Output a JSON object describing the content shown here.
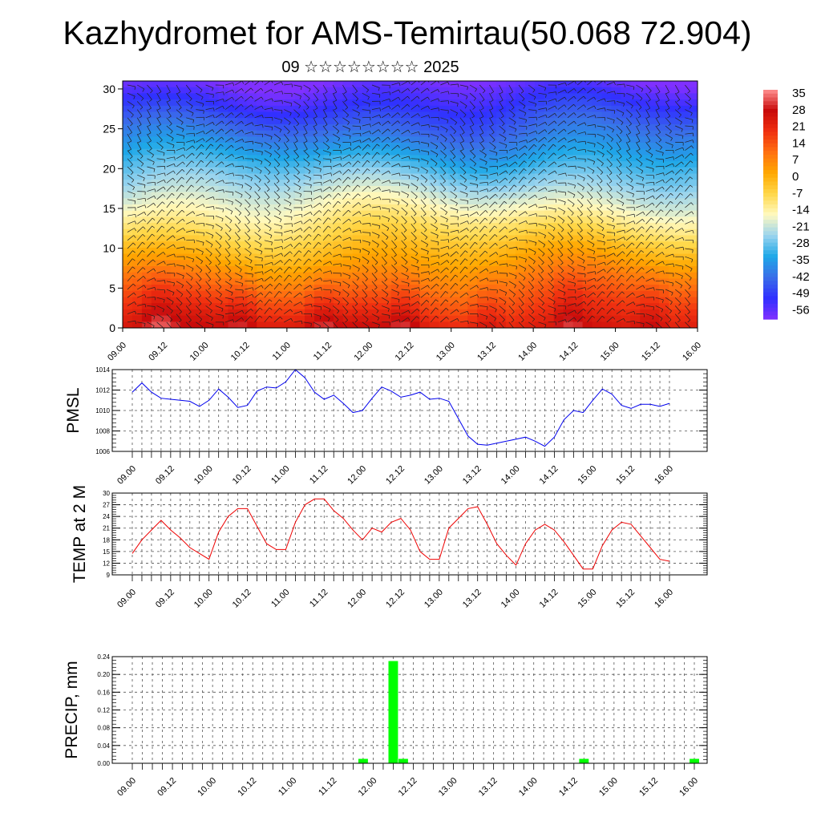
{
  "title": "Kazhydromet for AMS-Temirtau(50.068 72.904)",
  "subtitle": "09 ☆☆☆☆☆☆☆☆ 2025",
  "chart_data": [
    {
      "type": "heatmap",
      "name": "vertical cross-section",
      "y_ticks": [
        "0",
        "5",
        "10",
        "15",
        "20",
        "25",
        "30"
      ],
      "ylim": [
        0,
        31
      ],
      "x_ticks": [
        "09.00",
        "09.12",
        "10.00",
        "10.12",
        "11.00",
        "11.12",
        "12.00",
        "12.12",
        "13.00",
        "13.12",
        "14.00",
        "14.12",
        "15.00",
        "15.12",
        "16.00"
      ],
      "colorbar_labels": [
        "35",
        "28",
        "21",
        "14",
        "7",
        "0",
        "-7",
        "-14",
        "-21",
        "-28",
        "-35",
        "-42",
        "-49",
        "-56"
      ],
      "colorbar_range": [
        -60,
        38
      ],
      "colors": [
        "#8030ff",
        "#3030ff",
        "#3a6ee8",
        "#1ea8e8",
        "#9ad4ee",
        "#fff9c0",
        "#ffd84a",
        "#ffa800",
        "#ff7010",
        "#f03010",
        "#c80a0a",
        "#ff9090"
      ]
    },
    {
      "type": "line",
      "ylabel": "PMSL",
      "ylim": [
        1006,
        1014
      ],
      "y_ticks": [
        "1006",
        "1008",
        "1010",
        "1012",
        "1014"
      ],
      "x_ticks": [
        "09.00",
        "09.12",
        "10.00",
        "10.12",
        "11.00",
        "11.12",
        "12.00",
        "12.12",
        "13.00",
        "13.12",
        "14.00",
        "14.12",
        "15.00",
        "15.12",
        "16.00"
      ],
      "color": "#0000ee",
      "values": [
        1011.8,
        1012.7,
        1011.8,
        1011.2,
        1011.1,
        1011.0,
        1010.9,
        1010.4,
        1011.0,
        1012.1,
        1011.3,
        1010.3,
        1010.5,
        1011.9,
        1012.3,
        1012.2,
        1012.8,
        1014.0,
        1013.2,
        1011.8,
        1011.1,
        1011.5,
        1010.7,
        1009.8,
        1010.0,
        1011.2,
        1012.3,
        1011.9,
        1011.3,
        1011.5,
        1011.8,
        1011.1,
        1011.2,
        1010.9,
        1009.2,
        1007.5,
        1006.7,
        1006.6,
        1006.8,
        1007.0,
        1007.2,
        1007.4,
        1007.0,
        1006.5,
        1007.4,
        1009.1,
        1010.0,
        1009.8,
        1011.0,
        1012.1,
        1011.6,
        1010.5,
        1010.2,
        1010.6,
        1010.6,
        1010.4,
        1010.7
      ]
    },
    {
      "type": "line",
      "ylabel": "TEMP at 2 M",
      "ylim": [
        9,
        30
      ],
      "y_ticks": [
        "9",
        "12",
        "15",
        "18",
        "21",
        "24",
        "27",
        "30"
      ],
      "x_ticks": [
        "09.00",
        "09.12",
        "10.00",
        "10.12",
        "11.00",
        "11.12",
        "12.00",
        "12.12",
        "13.00",
        "13.12",
        "14.00",
        "14.12",
        "15.00",
        "15.12",
        "16.00"
      ],
      "color": "#ee0000",
      "values": [
        14.5,
        18.0,
        20.5,
        23.0,
        20.5,
        18.5,
        16.0,
        14.5,
        13.0,
        20.0,
        24.0,
        26.0,
        26.0,
        21.5,
        17.0,
        15.5,
        15.5,
        22.5,
        27.0,
        28.5,
        28.5,
        25.5,
        23.5,
        20.5,
        18.0,
        21.0,
        20.0,
        22.5,
        23.5,
        20.5,
        15.0,
        13.0,
        13.0,
        21.0,
        23.5,
        26.0,
        26.5,
        22.0,
        17.0,
        14.0,
        11.5,
        17.0,
        20.5,
        22.0,
        20.5,
        17.5,
        14.0,
        10.5,
        10.5,
        16.5,
        20.5,
        22.5,
        22.0,
        19.0,
        16.0,
        13.0,
        12.5
      ]
    },
    {
      "type": "bar",
      "ylabel": "PRECIP, mm",
      "ylim": [
        0,
        0.24
      ],
      "y_ticks": [
        "0.00",
        "0.04",
        "0.08",
        "0.12",
        "0.16",
        "0.20",
        "0.24"
      ],
      "x_ticks": [
        "09.00",
        "09.12",
        "10.00",
        "10.12",
        "11.00",
        "11.12",
        "12.00",
        "12.12",
        "13.00",
        "13.12",
        "14.00",
        "14.12",
        "15.00",
        "15.12",
        "16.00"
      ],
      "color": "#00ff00",
      "bars": [
        {
          "index": 23,
          "value": 0.01
        },
        {
          "index": 26,
          "value": 0.23
        },
        {
          "index": 27,
          "value": 0.01
        },
        {
          "index": 45,
          "value": 0.01
        },
        {
          "index": 56,
          "value": 0.01
        }
      ]
    }
  ]
}
